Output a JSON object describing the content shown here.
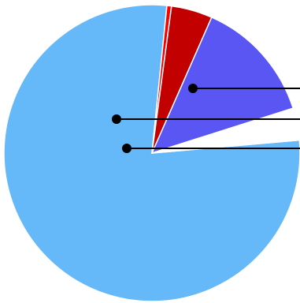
{
  "chart_data": {
    "type": "pie",
    "title": "",
    "slices": [
      {
        "value": 78.0,
        "color": "#66b9f9"
      },
      {
        "value": 0.5,
        "color": "#ff0000"
      },
      {
        "value": 4.5,
        "color": "#c30000"
      },
      {
        "value": 13.5,
        "color": "#5a56f3"
      },
      {
        "value": 3.5,
        "color": "#ffffff"
      }
    ],
    "start_angle_deg": -5,
    "direction": "clockwise",
    "leader_lines": 3,
    "legend": "none",
    "labels": "cropped"
  }
}
